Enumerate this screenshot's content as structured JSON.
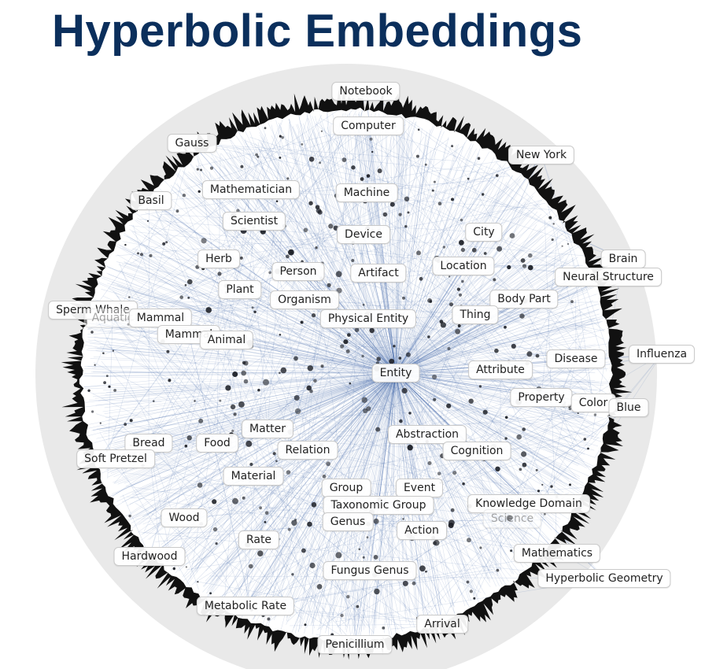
{
  "title": "Hyperbolic Embeddings",
  "colors": {
    "title": "#0b2f5c",
    "edges": "#3f63a8",
    "disk": "#e9e9e9",
    "rim": "#111111"
  },
  "center_label": "Entity",
  "labels": [
    "Notebook",
    "Computer",
    "Gauss",
    "New York",
    "Mathematician",
    "Machine",
    "Basil",
    "Scientist",
    "City",
    "Device",
    "Brain",
    "Herb",
    "Person",
    "Artifact",
    "Location",
    "Neural Structure",
    "Plant",
    "Organism",
    "Body Part",
    "Sperm Whale",
    "Aquatic",
    "Mammal",
    "Thing",
    "Physical Entity",
    "Mammal",
    "Animal",
    "Influenza",
    "Disease",
    "Attribute",
    "Entity",
    "Property",
    "Color",
    "Blue",
    "Matter",
    "Abstraction",
    "Bread",
    "Food",
    "Relation",
    "Cognition",
    "Soft Pretzel",
    "Material",
    "Group",
    "Event",
    "Taxonomic Group",
    "Knowledge Domain",
    "Wood",
    "Science",
    "Genus",
    "Action",
    "Rate",
    "Hardwood",
    "Mathematics",
    "Fungus Genus",
    "Hyperbolic Geometry",
    "Metabolic Rate",
    "Arrival",
    "Penicillium"
  ]
}
